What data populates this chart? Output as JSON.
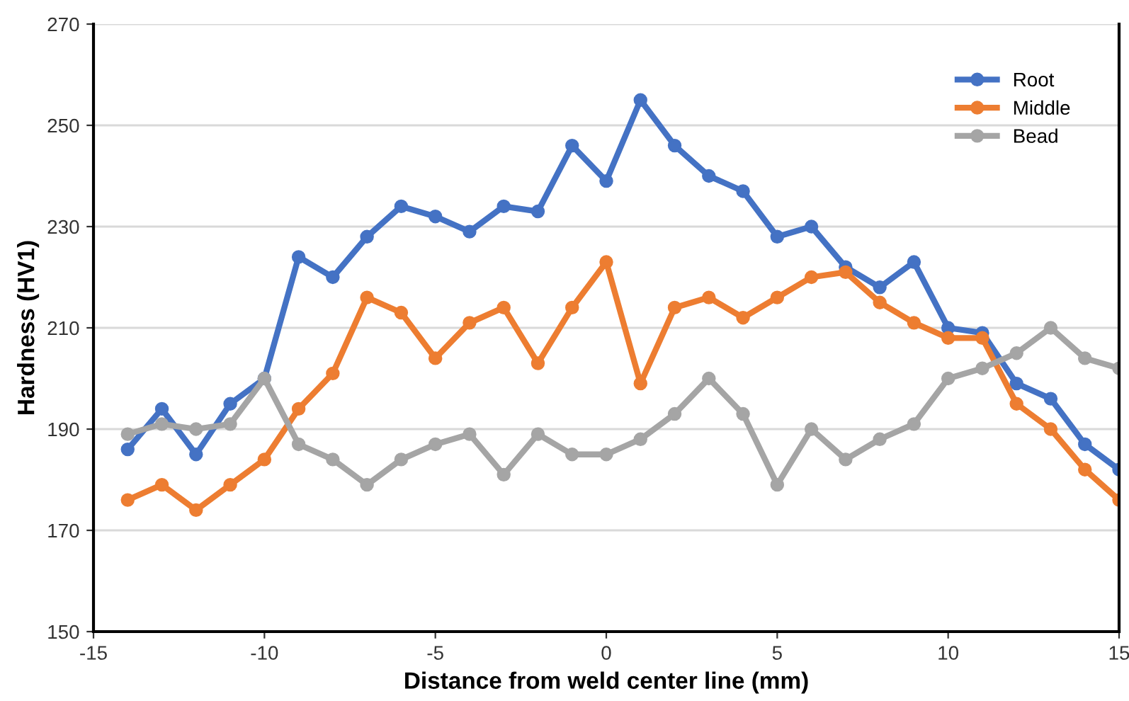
{
  "chart_data": {
    "type": "line",
    "xlabel": "Distance from weld center line (mm)",
    "ylabel": "Hardness (HV1)",
    "x": [
      -14,
      -13,
      -12,
      -11,
      -10,
      -9,
      -8,
      -7,
      -6,
      -5,
      -4,
      -3,
      -2,
      -1,
      0,
      1,
      2,
      3,
      4,
      5,
      6,
      7,
      8,
      9,
      10,
      11,
      12,
      13,
      14,
      15
    ],
    "series": [
      {
        "name": "Root",
        "color": "#4472c4",
        "values": [
          186,
          194,
          185,
          195,
          200,
          224,
          220,
          228,
          234,
          232,
          229,
          234,
          233,
          246,
          239,
          255,
          246,
          240,
          237,
          228,
          230,
          222,
          218,
          223,
          210,
          209,
          199,
          196,
          187,
          182
        ]
      },
      {
        "name": "Middle",
        "color": "#ed7d31",
        "values": [
          176,
          179,
          174,
          179,
          184,
          194,
          201,
          216,
          213,
          204,
          211,
          214,
          203,
          214,
          223,
          199,
          214,
          216,
          212,
          216,
          220,
          221,
          215,
          211,
          208,
          208,
          195,
          190,
          182,
          176
        ]
      },
      {
        "name": "Bead",
        "color": "#a5a5a5",
        "values": [
          189,
          191,
          190,
          191,
          200,
          187,
          184,
          179,
          184,
          187,
          189,
          181,
          189,
          185,
          185,
          188,
          193,
          200,
          193,
          179,
          190,
          184,
          188,
          191,
          200,
          202,
          205,
          210,
          204,
          202
        ]
      }
    ],
    "xlim": [
      -15,
      15
    ],
    "xticks": [
      -15,
      -10,
      -5,
      0,
      5,
      10,
      15
    ],
    "ylim": [
      150,
      270
    ],
    "yticks": [
      150,
      170,
      190,
      210,
      230,
      250,
      270
    ],
    "grid": "y",
    "legend": "top right",
    "marker": "circle",
    "line_style": "solid"
  }
}
